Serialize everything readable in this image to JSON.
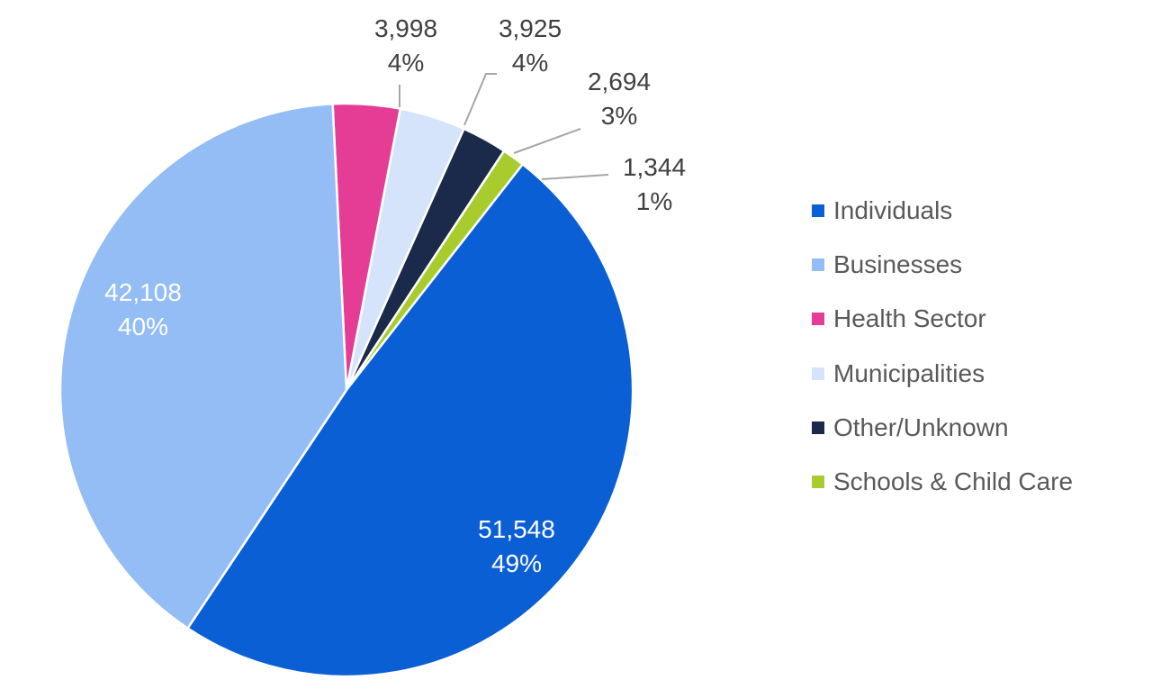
{
  "chart_data": {
    "type": "pie",
    "title": "",
    "legend_position": "right",
    "categories": [
      "Individuals",
      "Businesses",
      "Health Sector",
      "Municipalities",
      "Other/Unknown",
      "Schools & Child Care"
    ],
    "values": [
      51548,
      42108,
      3998,
      3925,
      2694,
      1344
    ],
    "value_labels": [
      "51,548",
      "42,108",
      "3,998",
      "3,925",
      "2,694",
      "1,344"
    ],
    "percent_labels": [
      "49%",
      "40%",
      "4%",
      "4%",
      "3%",
      "1%"
    ],
    "colors": [
      "#0B5FD5",
      "#94BDF5",
      "#E53D96",
      "#D5E4FA",
      "#1B2A4A",
      "#A8CC2E"
    ],
    "label_colors": [
      "#ffffff",
      "#ffffff",
      "#404040",
      "#404040",
      "#404040",
      "#404040"
    ]
  }
}
